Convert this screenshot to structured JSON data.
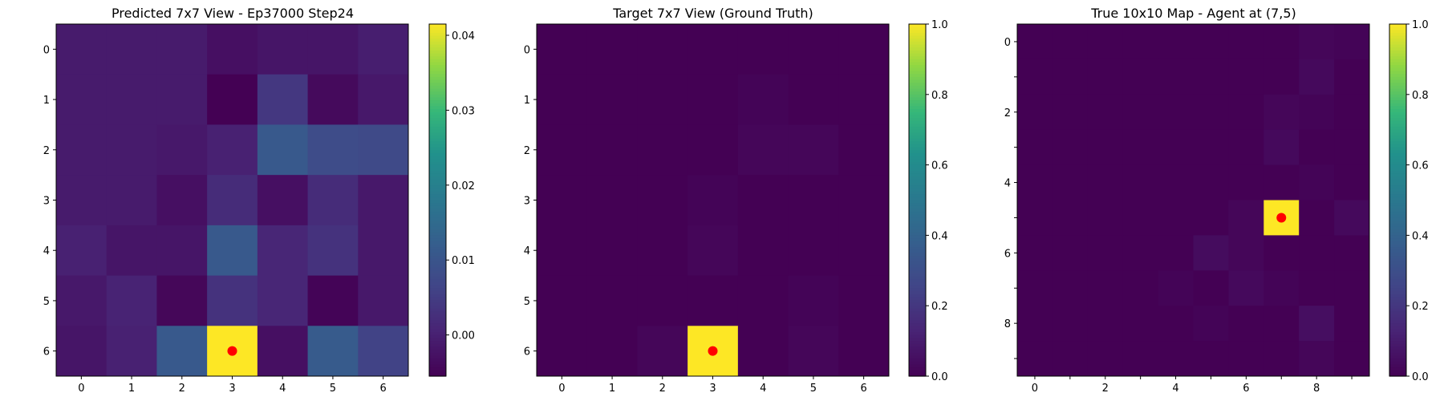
{
  "chart_data": [
    {
      "type": "heatmap",
      "title": "Predicted 7x7 View - Ep37000 Step24",
      "colormap": "viridis",
      "rows": 7,
      "cols": 7,
      "x_ticks": [
        "0",
        "1",
        "2",
        "3",
        "4",
        "5",
        "6"
      ],
      "y_ticks": [
        "0",
        "1",
        "2",
        "3",
        "4",
        "5",
        "6"
      ],
      "vmin": -0.0055,
      "vmax": 0.0415,
      "colorbar_ticks": [
        "0.00",
        "0.01",
        "0.02",
        "0.03",
        "0.04"
      ],
      "colorbar_tick_values": [
        0.0,
        0.01,
        0.02,
        0.03,
        0.04
      ],
      "values": [
        [
          -0.001,
          -0.001,
          -0.001,
          -0.003,
          -0.002,
          -0.002,
          -0.0005
        ],
        [
          -0.001,
          -0.001,
          -0.001,
          -0.0055,
          0.004,
          -0.004,
          -0.0015
        ],
        [
          -0.001,
          -0.001,
          -0.0015,
          0.0,
          0.011,
          0.008,
          0.0075
        ],
        [
          -0.001,
          -0.001,
          -0.003,
          0.002,
          -0.003,
          0.002,
          -0.0015
        ],
        [
          0.0,
          -0.002,
          -0.002,
          0.011,
          0.001,
          0.003,
          -0.0015
        ],
        [
          -0.0015,
          0.0005,
          -0.0045,
          0.003,
          0.001,
          -0.005,
          -0.0015
        ],
        [
          -0.002,
          0.0,
          0.011,
          0.0415,
          -0.003,
          0.0115,
          0.006
        ]
      ],
      "agent_marker": {
        "row": 6,
        "col": 3,
        "color": "#ff0000"
      }
    },
    {
      "type": "heatmap",
      "title": "Target 7x7 View (Ground Truth)",
      "colormap": "viridis",
      "rows": 7,
      "cols": 7,
      "x_ticks": [
        "0",
        "1",
        "2",
        "3",
        "4",
        "5",
        "6"
      ],
      "y_ticks": [
        "0",
        "1",
        "2",
        "3",
        "4",
        "5",
        "6"
      ],
      "vmin": 0.0,
      "vmax": 1.0,
      "colorbar_ticks": [
        "0.0",
        "0.2",
        "0.4",
        "0.6",
        "0.8",
        "1.0"
      ],
      "colorbar_tick_values": [
        0.0,
        0.2,
        0.4,
        0.6,
        0.8,
        1.0
      ],
      "values": [
        [
          0.0,
          0.0,
          0.0,
          0.0,
          0.0,
          0.0,
          0.0
        ],
        [
          0.0,
          0.0,
          0.0,
          0.0,
          0.01,
          0.0,
          0.0
        ],
        [
          0.0,
          0.0,
          0.0,
          0.0,
          0.02,
          0.02,
          0.0
        ],
        [
          0.0,
          0.0,
          0.0,
          0.01,
          0.0,
          0.0,
          0.0
        ],
        [
          0.0,
          0.0,
          0.0,
          0.02,
          0.0,
          0.0,
          0.0
        ],
        [
          0.0,
          0.0,
          0.0,
          0.0,
          0.0,
          0.01,
          0.0
        ],
        [
          0.0,
          0.0,
          0.02,
          1.0,
          0.0,
          0.02,
          0.0
        ]
      ],
      "agent_marker": {
        "row": 6,
        "col": 3,
        "color": "#ff0000"
      }
    },
    {
      "type": "heatmap",
      "title": "True 10x10 Map - Agent at (7,5)",
      "colormap": "viridis",
      "rows": 10,
      "cols": 10,
      "x_ticks": [
        "0",
        "",
        "2",
        "",
        "4",
        "",
        "6",
        "",
        "8",
        ""
      ],
      "y_ticks": [
        "0",
        "",
        "2",
        "",
        "4",
        "",
        "6",
        "",
        "8",
        ""
      ],
      "vmin": 0.0,
      "vmax": 1.0,
      "colorbar_ticks": [
        "0.0",
        "0.2",
        "0.4",
        "0.6",
        "0.8",
        "1.0"
      ],
      "colorbar_tick_values": [
        0.0,
        0.2,
        0.4,
        0.6,
        0.8,
        1.0
      ],
      "values": [
        [
          0.0,
          0.0,
          0.0,
          0.0,
          0.0,
          0.0,
          0.0,
          0.0,
          0.02,
          0.01
        ],
        [
          0.0,
          0.0,
          0.0,
          0.0,
          0.0,
          0.0,
          0.0,
          0.0,
          0.03,
          0.0
        ],
        [
          0.0,
          0.0,
          0.0,
          0.0,
          0.0,
          0.0,
          0.0,
          0.02,
          0.01,
          0.0
        ],
        [
          0.0,
          0.0,
          0.0,
          0.0,
          0.0,
          0.0,
          0.0,
          0.03,
          0.0,
          0.0
        ],
        [
          0.0,
          0.0,
          0.0,
          0.0,
          0.0,
          0.0,
          0.0,
          0.0,
          0.01,
          0.0
        ],
        [
          0.0,
          0.0,
          0.0,
          0.0,
          0.0,
          0.0,
          0.02,
          1.0,
          0.0,
          0.03
        ],
        [
          0.0,
          0.0,
          0.0,
          0.0,
          0.0,
          0.04,
          0.02,
          0.0,
          0.0,
          0.0
        ],
        [
          0.0,
          0.0,
          0.0,
          0.0,
          0.01,
          0.0,
          0.03,
          0.01,
          0.0,
          0.0
        ],
        [
          0.0,
          0.0,
          0.0,
          0.0,
          0.0,
          0.01,
          0.0,
          0.0,
          0.05,
          0.0
        ],
        [
          0.0,
          0.0,
          0.0,
          0.0,
          0.0,
          0.0,
          0.0,
          0.0,
          0.02,
          0.0
        ]
      ],
      "agent_marker": {
        "row": 5,
        "col": 7,
        "color": "#ff0000"
      }
    }
  ]
}
